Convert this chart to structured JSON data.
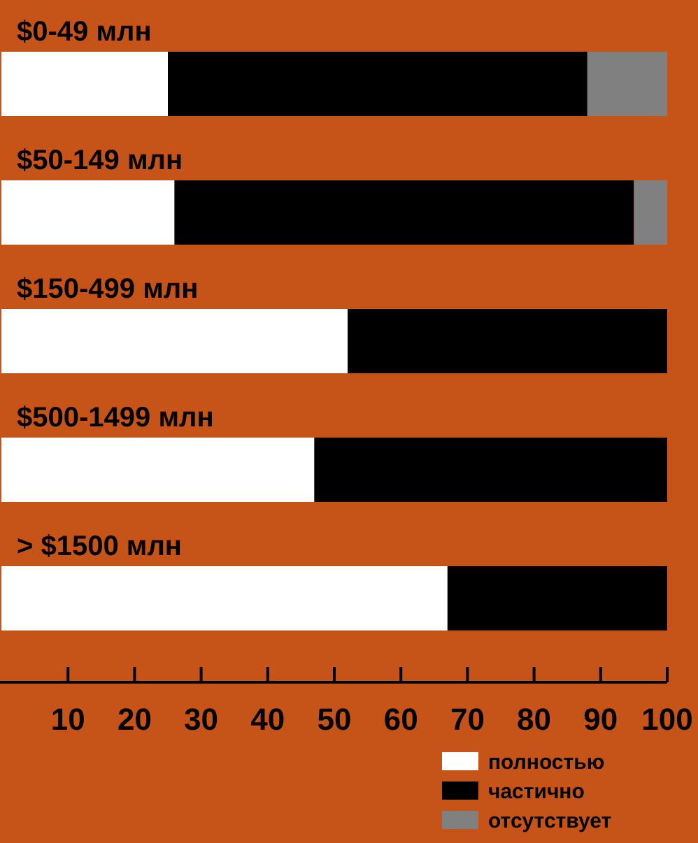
{
  "chart_data": {
    "type": "bar",
    "orientation": "horizontal",
    "stacked": true,
    "categories": [
      "$0-49 млн",
      "$50-149 млн",
      "$150-499 млн",
      "$500-1499 млн",
      "> $1500 млн"
    ],
    "series": [
      {
        "name": "полностью",
        "color": "#ffffff",
        "values": [
          25,
          26,
          52,
          47,
          67
        ]
      },
      {
        "name": "частично",
        "color": "#000000",
        "values": [
          63,
          69,
          48,
          53,
          33
        ]
      },
      {
        "name": "отсутствует",
        "color": "#808080",
        "values": [
          12,
          5,
          0,
          0,
          0
        ]
      }
    ],
    "xlim": [
      0,
      100
    ],
    "xticks": [
      10,
      20,
      30,
      40,
      50,
      60,
      70,
      80,
      90,
      100
    ],
    "legend": "bottom right"
  }
}
